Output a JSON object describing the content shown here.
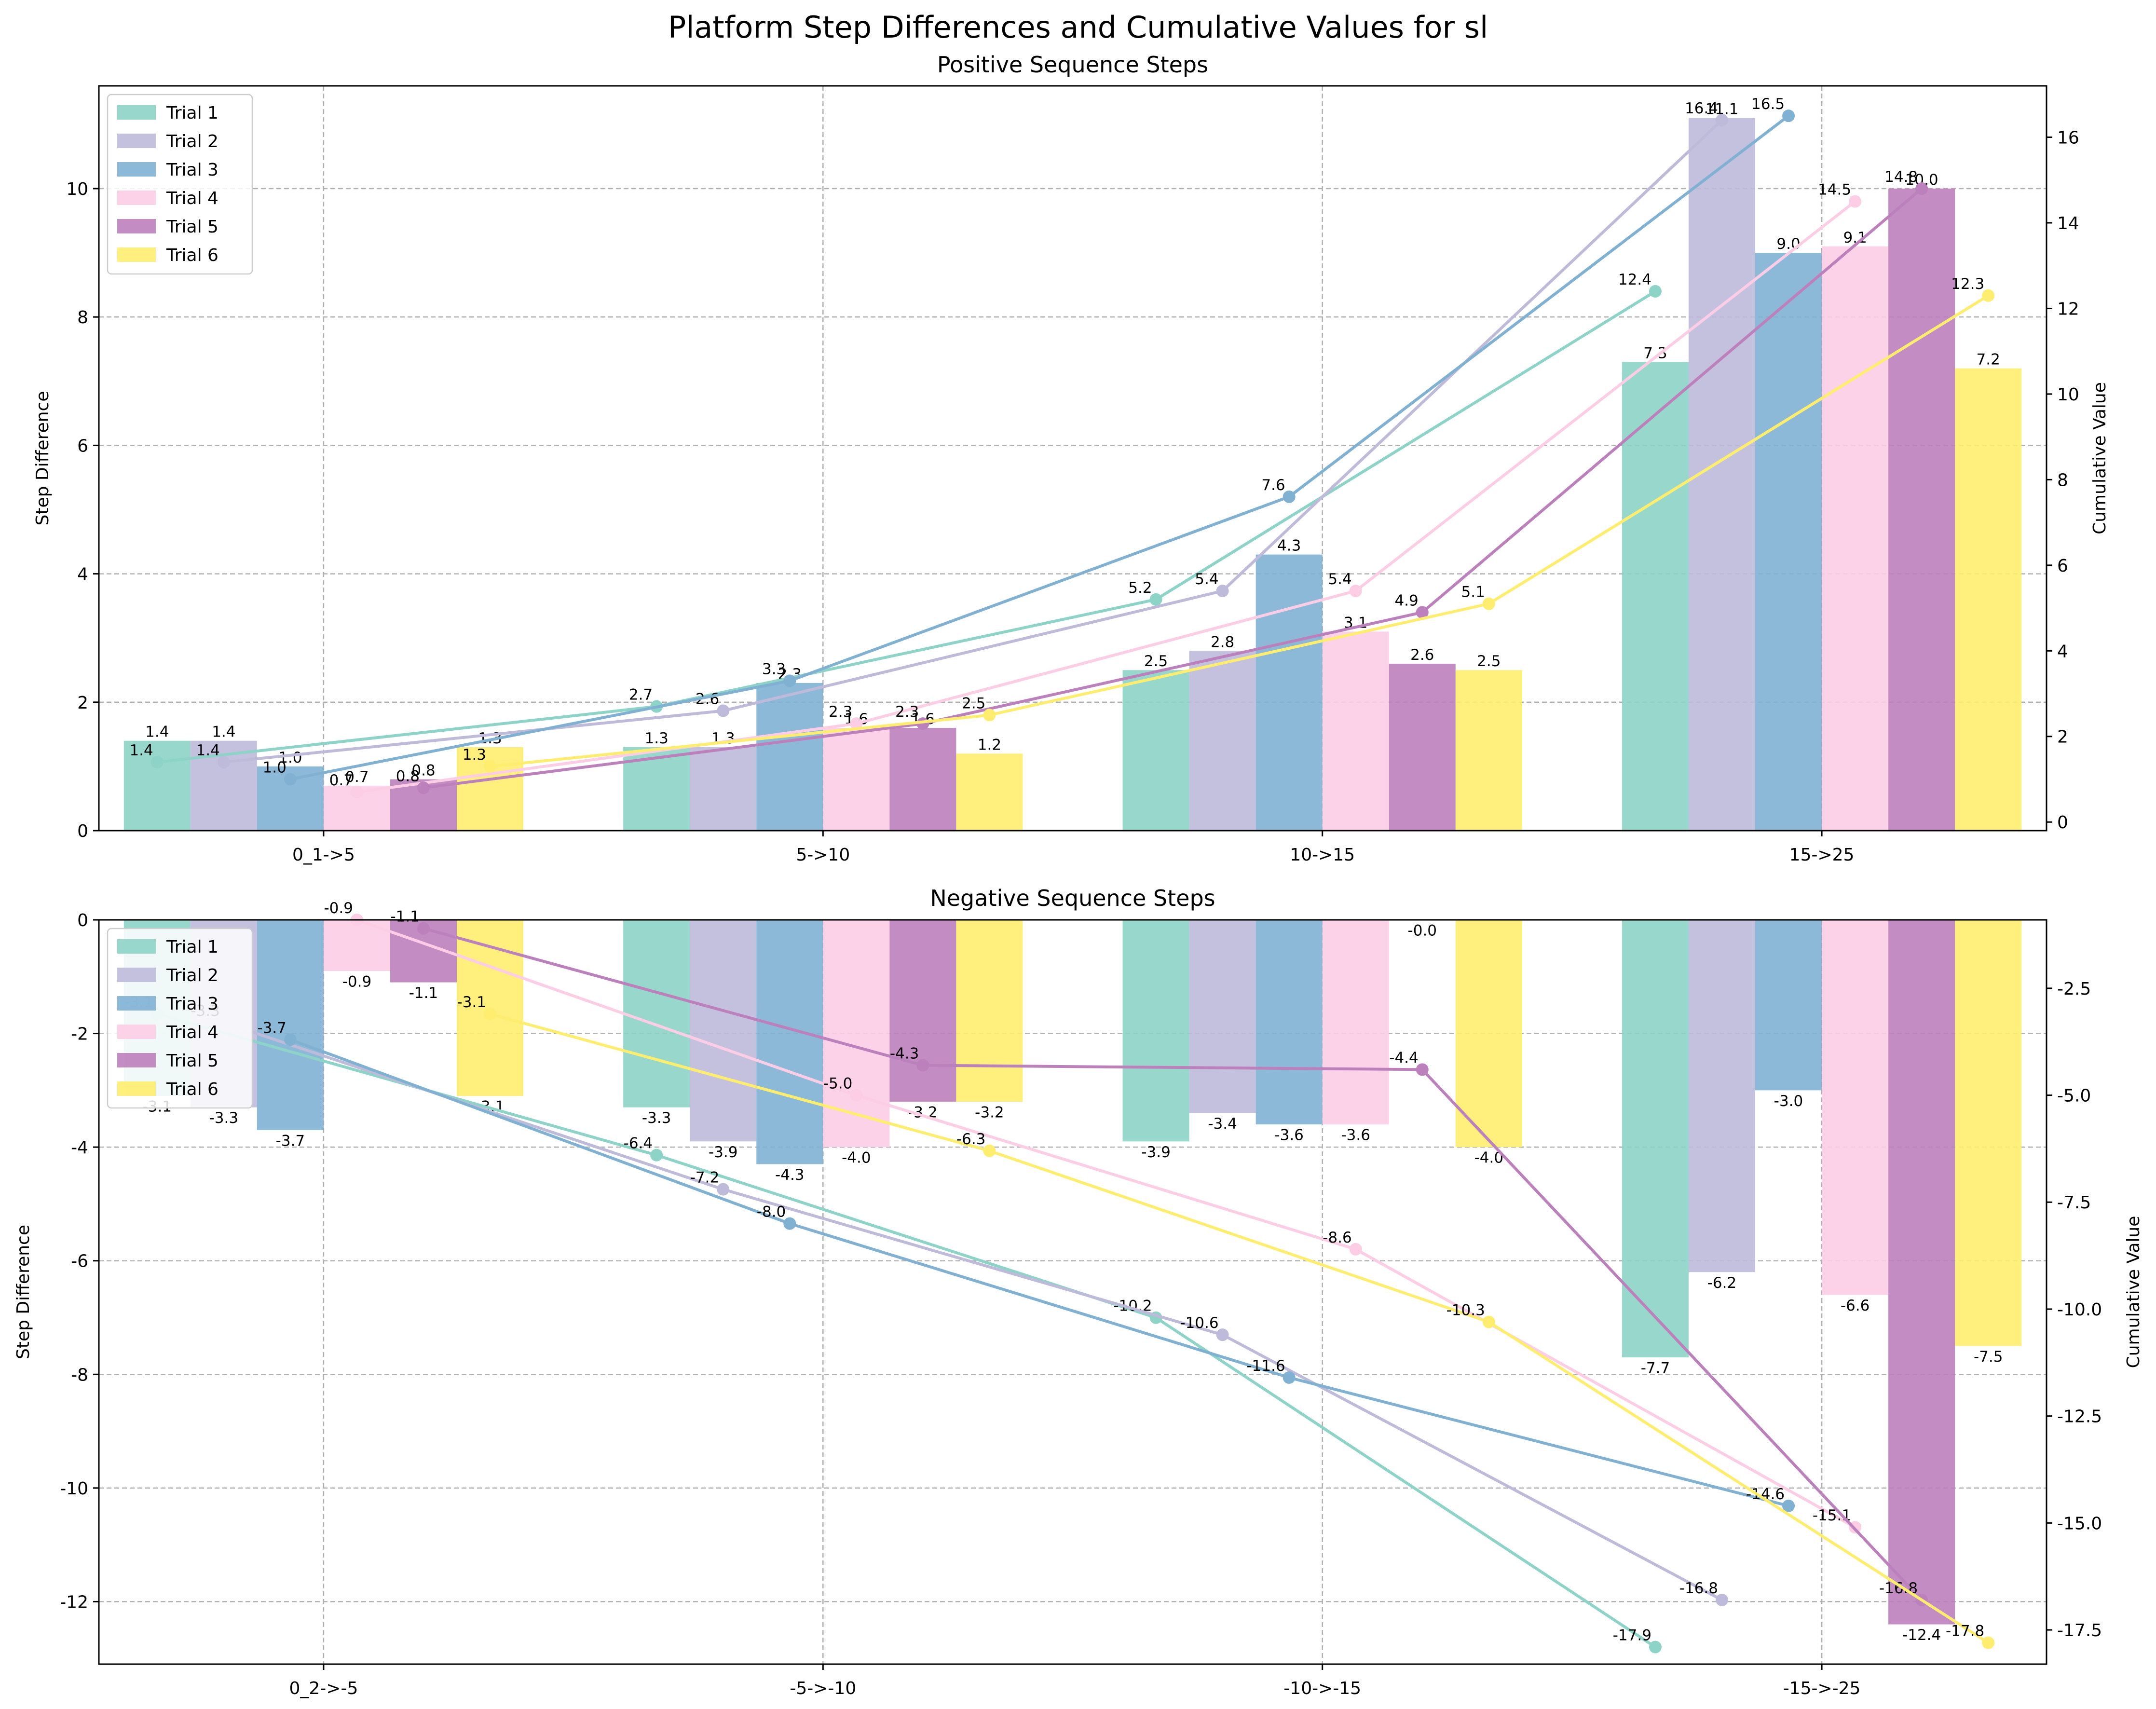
{
  "figure_title": "Platform Step Differences and Cumulative Values for sl",
  "chart_data": [
    {
      "type": "bar",
      "title": "Positive Sequence Steps",
      "xlabel": "",
      "ylabel": "Step Difference",
      "y2label": "Cumulative Value",
      "categories": [
        "0_1->5",
        "5->10",
        "10->15",
        "15->25"
      ],
      "ylim": [
        0,
        11.6
      ],
      "yticks": [
        0,
        2,
        4,
        6,
        8,
        10
      ],
      "y2lim": [
        -0.2,
        17.2
      ],
      "y2ticks": [
        0,
        2,
        4,
        6,
        8,
        10,
        12,
        14,
        16
      ],
      "grid": true,
      "legend_position": "upper left",
      "series": [
        {
          "name": "Trial 1",
          "color": "#8dd3c7",
          "values": [
            1.4,
            1.3,
            2.5,
            7.3
          ],
          "cumulative": [
            1.4,
            2.7,
            5.2,
            12.4
          ]
        },
        {
          "name": "Trial 2",
          "color": "#bebada",
          "values": [
            1.4,
            1.3,
            2.8,
            11.1
          ],
          "cumulative": [
            1.4,
            2.6,
            5.4,
            16.4
          ]
        },
        {
          "name": "Trial 3",
          "color": "#80b1d3",
          "values": [
            1.0,
            2.3,
            4.3,
            9.0
          ],
          "cumulative": [
            1.0,
            3.3,
            7.6,
            16.5
          ]
        },
        {
          "name": "Trial 4",
          "color": "#fccde5",
          "values": [
            0.7,
            1.6,
            3.1,
            9.1
          ],
          "cumulative": [
            0.7,
            2.3,
            5.4,
            14.5
          ]
        },
        {
          "name": "Trial 5",
          "color": "#bc80bd",
          "values": [
            0.8,
            1.6,
            2.6,
            10.0
          ],
          "cumulative": [
            0.8,
            2.3,
            4.9,
            14.8
          ]
        },
        {
          "name": "Trial 6",
          "color": "#ffed6f",
          "values": [
            1.3,
            1.2,
            2.5,
            7.2
          ],
          "cumulative": [
            1.3,
            2.5,
            5.1,
            12.3
          ]
        }
      ]
    },
    {
      "type": "bar",
      "title": "Negative Sequence Steps",
      "xlabel": "",
      "ylabel": "Step Difference",
      "y2label": "Cumulative Value",
      "categories": [
        "0_2->-5",
        "-5->-10",
        "-10->-15",
        "-15->-25"
      ],
      "ylim": [
        -13.1,
        0
      ],
      "yticks": [
        0,
        -2,
        -4,
        -6,
        -8,
        -10,
        -12
      ],
      "y2lim": [
        -18.3,
        -0.9
      ],
      "y2ticks": [
        -2.5,
        -5.0,
        -7.5,
        -10.0,
        -12.5,
        -15.0,
        -17.5
      ],
      "grid": true,
      "legend_position": "upper left",
      "series": [
        {
          "name": "Trial 1",
          "color": "#8dd3c7",
          "values": [
            -3.1,
            -3.3,
            -3.9,
            -7.7
          ],
          "cumulative": [
            -3.1,
            -6.4,
            -10.2,
            -17.9
          ]
        },
        {
          "name": "Trial 2",
          "color": "#bebada",
          "values": [
            -3.3,
            -3.9,
            -3.4,
            -6.2
          ],
          "cumulative": [
            -3.3,
            -7.2,
            -10.6,
            -16.8
          ]
        },
        {
          "name": "Trial 3",
          "color": "#80b1d3",
          "values": [
            -3.7,
            -4.3,
            -3.6,
            -3.0
          ],
          "cumulative": [
            -3.7,
            -8.0,
            -11.6,
            -14.6
          ]
        },
        {
          "name": "Trial 4",
          "color": "#fccde5",
          "values": [
            -0.9,
            -4.0,
            -3.6,
            -6.6
          ],
          "cumulative": [
            -0.9,
            -5.0,
            -8.6,
            -15.1
          ]
        },
        {
          "name": "Trial 5",
          "color": "#bc80bd",
          "values": [
            -1.1,
            -3.2,
            -0.0,
            -12.4
          ],
          "cumulative": [
            -1.1,
            -4.3,
            -4.4,
            -16.8
          ]
        },
        {
          "name": "Trial 6",
          "color": "#ffed6f",
          "values": [
            -3.1,
            -3.2,
            -4.0,
            -7.5
          ],
          "cumulative": [
            -3.1,
            -6.3,
            -10.3,
            -17.8
          ]
        }
      ]
    }
  ]
}
